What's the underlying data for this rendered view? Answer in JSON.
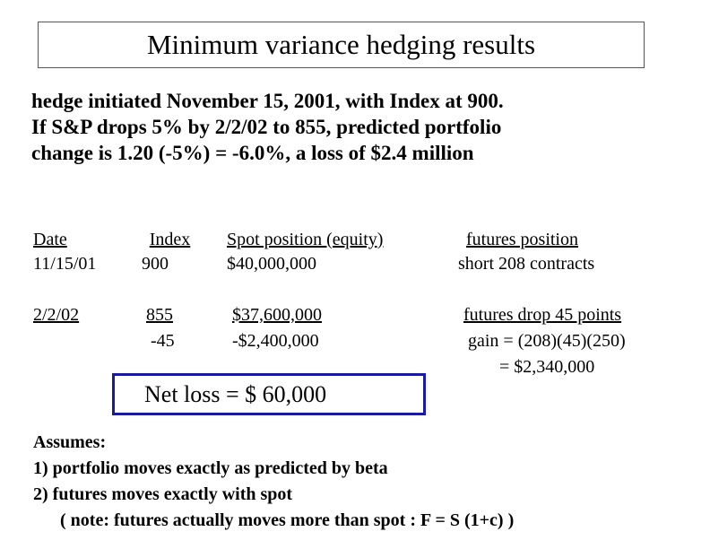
{
  "title": "Minimum variance hedging results",
  "intro": [
    "hedge initiated November 15, 2001, with Index at 900.",
    "If S&P drops 5% by 2/2/02 to 855, predicted portfolio",
    "change is 1.20 (-5%) = -6.0%, a loss of $2.4 million"
  ],
  "table": {
    "headers": {
      "date": "Date",
      "index": "Index",
      "spot": "Spot position (equity)",
      "futures": "futures position"
    },
    "row1": {
      "date": "11/15/01",
      "index": "900",
      "spot": "$40,000,000",
      "futures": "short 208 contracts"
    },
    "row2": {
      "date": "2/2/02",
      "index": "855",
      "index_change": "-45",
      "spot": "$37,600,000",
      "spot_change": "-$2,400,000",
      "futures": "futures drop 45 points",
      "futures_gain": "gain = (208)(45)(250)",
      "futures_total": "= $2,340,000"
    }
  },
  "net_loss": "Net loss = $ 60,000",
  "assumptions": {
    "heading": "Assumes:",
    "items": [
      "1) portfolio moves exactly as predicted by beta",
      "2) futures moves exactly with spot"
    ],
    "note": "( note: futures actually moves more than spot : F = S (1+c) )"
  }
}
